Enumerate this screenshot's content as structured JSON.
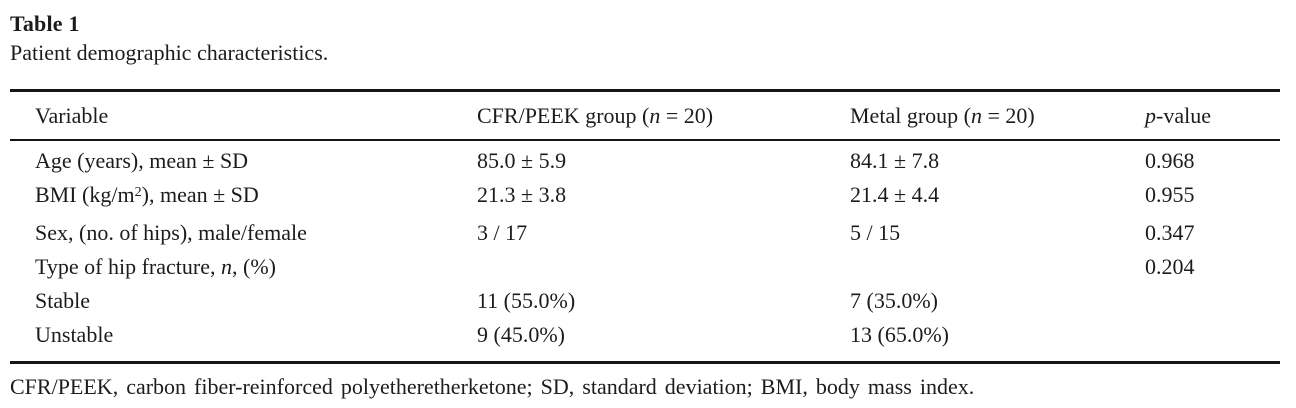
{
  "title": "Table 1",
  "caption": "Patient demographic characteristics.",
  "footnote": "CFR/PEEK, carbon fiber-reinforced polyetheretherketone; SD, standard deviation; BMI, body mass index.",
  "colors": {
    "text": "#1c1c1c",
    "rule": "#161616",
    "background": "#ffffff"
  },
  "table": {
    "columns": [
      {
        "name": "variable",
        "parts": [
          {
            "t": "Variable"
          }
        ]
      },
      {
        "name": "cfr-peek-group",
        "parts": [
          {
            "t": "CFR/PEEK group ("
          },
          {
            "t": "n",
            "s": "i"
          },
          {
            "t": " = 20)"
          }
        ]
      },
      {
        "name": "metal-group",
        "parts": [
          {
            "t": "Metal group ("
          },
          {
            "t": "n",
            "s": "i"
          },
          {
            "t": " = 20)"
          }
        ]
      },
      {
        "name": "p-value",
        "parts": [
          {
            "t": "p",
            "s": "i"
          },
          {
            "t": "-value"
          }
        ]
      }
    ],
    "rows": [
      {
        "cells": [
          [
            {
              "t": "Age (years), mean ± SD"
            }
          ],
          [
            {
              "t": "85.0 ± 5.9"
            }
          ],
          [
            {
              "t": "84.1 ± 7.8"
            }
          ],
          [
            {
              "t": "0.968"
            }
          ]
        ]
      },
      {
        "cells": [
          [
            {
              "t": "BMI (kg/m"
            },
            {
              "t": "2",
              "s": "sup"
            },
            {
              "t": "), mean ± SD"
            }
          ],
          [
            {
              "t": "21.3 ± 3.8"
            }
          ],
          [
            {
              "t": "21.4 ± 4.4"
            }
          ],
          [
            {
              "t": "0.955"
            }
          ]
        ]
      },
      {
        "cells": [
          [
            {
              "t": "Sex, (no. of hips), male/female"
            }
          ],
          [
            {
              "t": "3 / 17"
            }
          ],
          [
            {
              "t": "5 / 15"
            }
          ],
          [
            {
              "t": "0.347"
            }
          ]
        ]
      },
      {
        "cells": [
          [
            {
              "t": "Type of hip fracture, "
            },
            {
              "t": "n",
              "s": "i"
            },
            {
              "t": ", (%)"
            }
          ],
          [],
          [],
          [
            {
              "t": "0.204"
            }
          ]
        ]
      },
      {
        "cells": [
          [
            {
              "t": "Stable"
            }
          ],
          [
            {
              "t": "11 (55.0%)"
            }
          ],
          [
            {
              "t": "7 (35.0%)"
            }
          ],
          []
        ]
      },
      {
        "cells": [
          [
            {
              "t": "Unstable"
            }
          ],
          [
            {
              "t": "9 (45.0%)"
            }
          ],
          [
            {
              "t": "13 (65.0%)"
            }
          ],
          []
        ]
      }
    ]
  }
}
